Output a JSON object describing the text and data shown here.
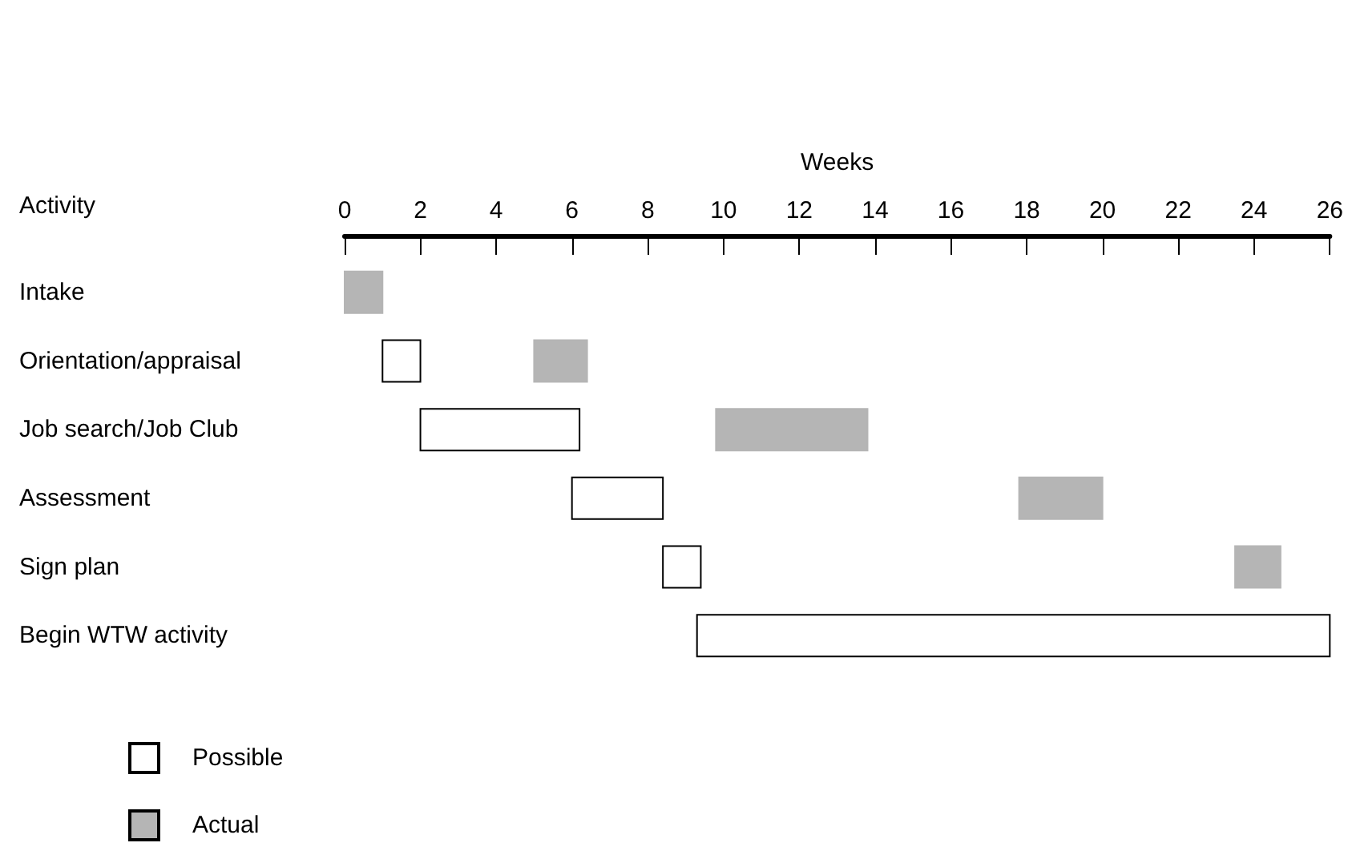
{
  "chart_data": {
    "type": "bar",
    "orientation": "horizontal",
    "xlabel": "Weeks",
    "ylabel": "Activity",
    "categories": [
      "Intake",
      "Orientation/appraisal",
      "Job search/Job Club",
      "Assessment",
      "Sign plan",
      "Begin WTW activity"
    ],
    "series": [
      {
        "name": "Possible",
        "color": "#ffffff",
        "base": [
          null,
          1,
          2,
          6,
          8.4,
          9.3
        ],
        "values": [
          null,
          1,
          4.2,
          2.4,
          1,
          16.7
        ]
      },
      {
        "name": "Actual",
        "color": "#b5b5b5",
        "base": [
          0,
          5,
          9.8,
          17.8,
          23.5,
          null
        ],
        "values": [
          1,
          1.4,
          4,
          2.2,
          1.2,
          null
        ]
      }
    ],
    "xlim": [
      0,
      26
    ],
    "xticks": [
      0,
      2,
      4,
      6,
      8,
      10,
      12,
      14,
      16,
      18,
      20,
      22,
      24,
      26
    ],
    "grid": false,
    "legend": "bottom left"
  }
}
